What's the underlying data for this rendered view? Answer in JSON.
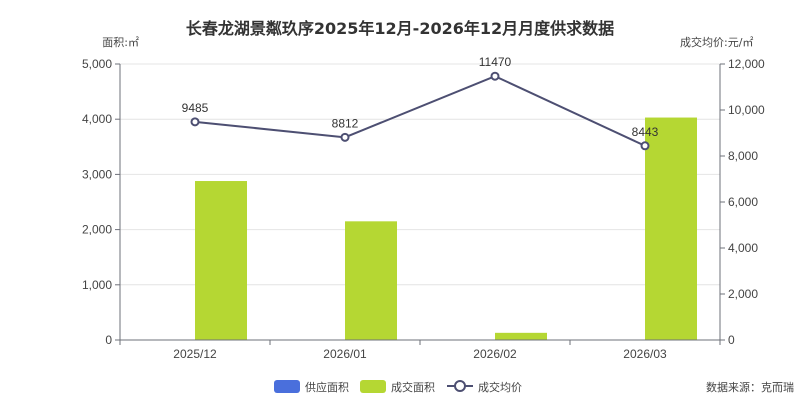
{
  "chart_data": {
    "type": "bar",
    "title": "长春龙湖景粼玖序2025年12月-2026年12月月度供求数据",
    "y_left_label": "面积:㎡",
    "y_right_label": "成交均价:元/㎡",
    "categories": [
      "2025/12",
      "2026/01",
      "2026/02",
      "2026/03"
    ],
    "y_left_lim": [
      0,
      5000
    ],
    "y_left_ticks": [
      "0",
      "1,000",
      "2,000",
      "3,000",
      "4,000",
      "5,000"
    ],
    "y_right_lim": [
      0,
      12000
    ],
    "y_right_ticks": [
      "0",
      "2,000",
      "4,000",
      "6,000",
      "8,000",
      "10,000",
      "12,000"
    ],
    "grid": true,
    "legend_position": "bottom",
    "series": [
      {
        "name": "供应面积",
        "type": "bar",
        "axis": "left",
        "color": "#4a6fdc",
        "values": [
          0,
          0,
          0,
          0
        ]
      },
      {
        "name": "成交面积",
        "type": "bar",
        "axis": "left",
        "color": "#b5d733",
        "values": [
          2880,
          2150,
          130,
          4030
        ]
      },
      {
        "name": "成交均价",
        "type": "line",
        "axis": "right",
        "color": "#4d4f72",
        "values": [
          9485,
          8812,
          11470,
          8443
        ],
        "data_labels": [
          "9485",
          "8812",
          "11470",
          "8443"
        ]
      }
    ],
    "source_note": "数据来源：克而瑞"
  }
}
